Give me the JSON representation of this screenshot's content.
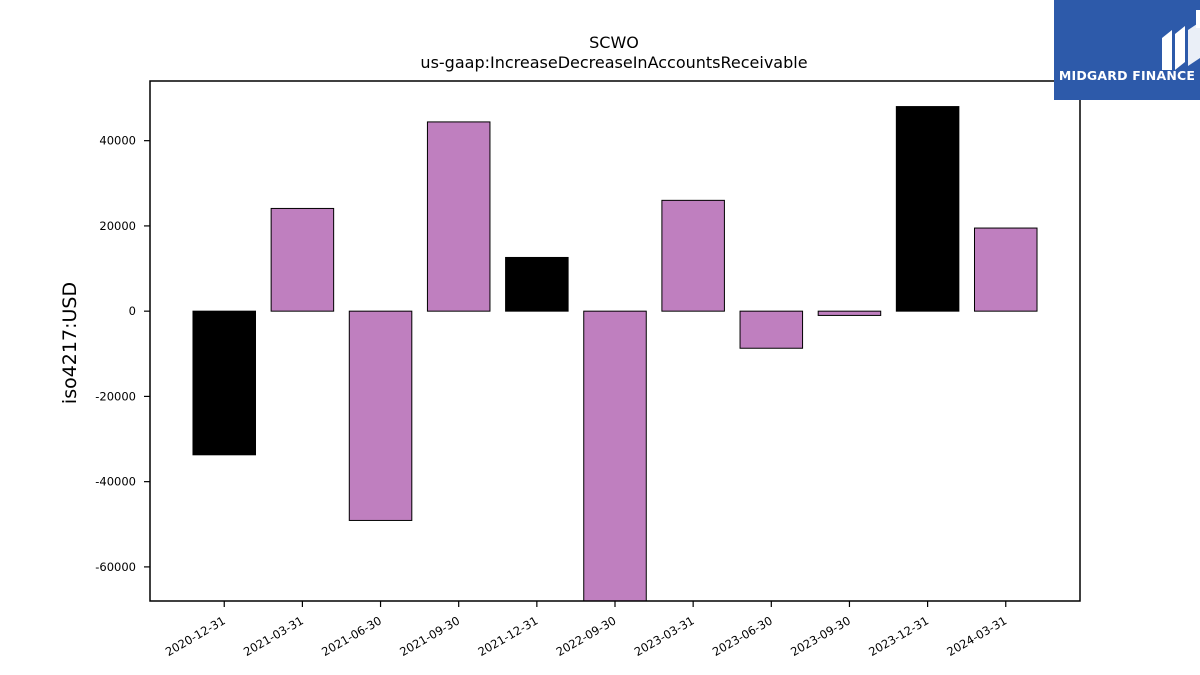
{
  "logo": {
    "text": "MIDGARD FINANCE",
    "bg": "#2d5aaa"
  },
  "chart_data": {
    "type": "bar",
    "title": "SCWO",
    "subtitle": "us-gaap:IncreaseDecreaseInAccountsReceivable",
    "ylabel": "iso4217:USD",
    "xlabel": "",
    "ylim": [
      -68000,
      54000
    ],
    "yticks": [
      -60000,
      -40000,
      -20000,
      0,
      20000,
      40000
    ],
    "categories": [
      "2020-12-31",
      "2021-03-31",
      "2021-06-30",
      "2021-09-30",
      "2021-12-31",
      "2022-09-30",
      "2023-03-31",
      "2023-06-30",
      "2023-09-30",
      "2023-12-31",
      "2024-03-31"
    ],
    "values": [
      -33700,
      24100,
      -49100,
      44400,
      12600,
      -69000,
      26000,
      -8700,
      -1000,
      48000,
      19500
    ],
    "colors": [
      "#000000",
      "#bf7fbf",
      "#bf7fbf",
      "#bf7fbf",
      "#000000",
      "#bf7fbf",
      "#bf7fbf",
      "#bf7fbf",
      "#bf7fbf",
      "#000000",
      "#bf7fbf"
    ],
    "grid": false,
    "legend": "none"
  }
}
